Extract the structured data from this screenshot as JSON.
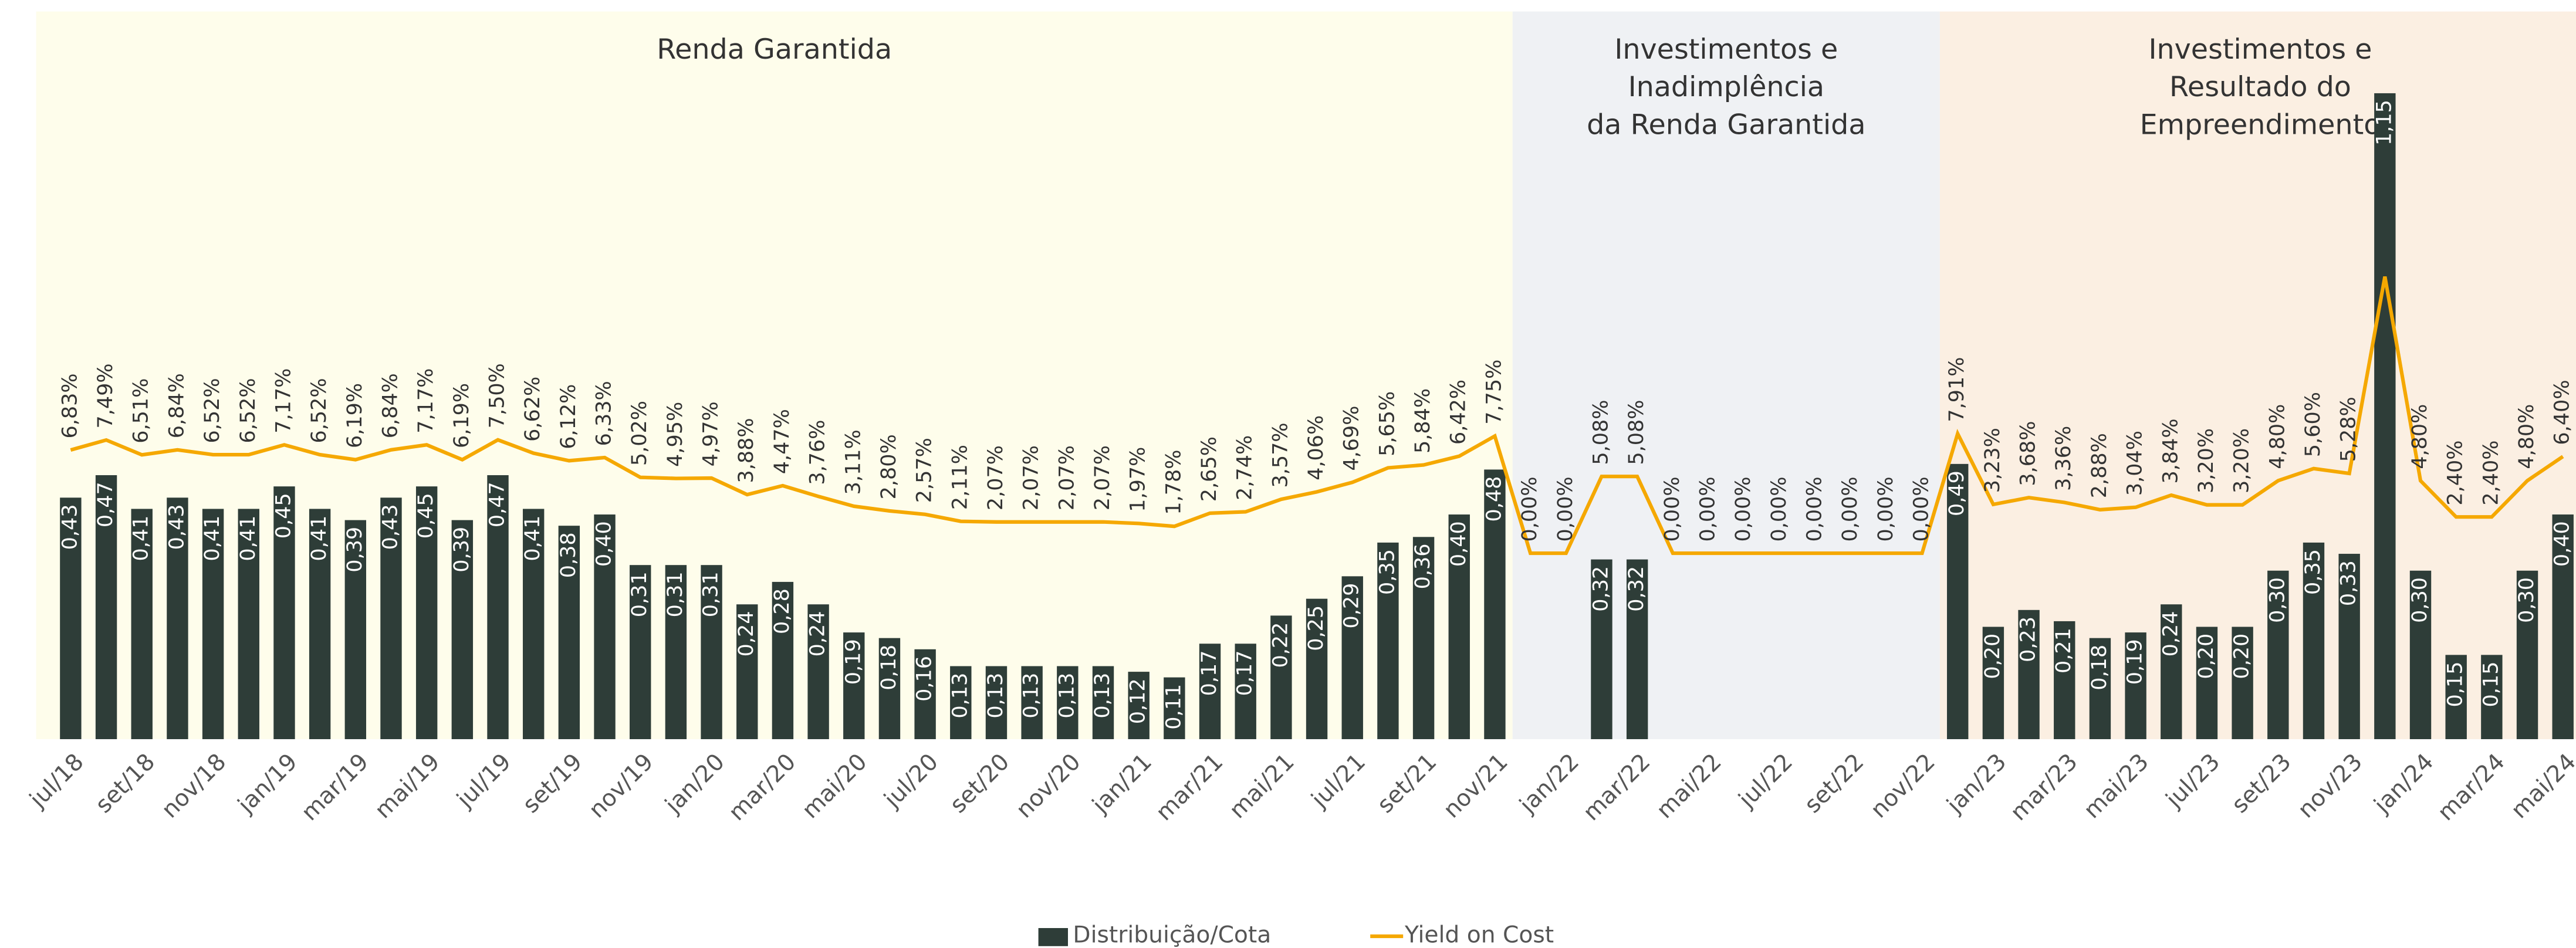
{
  "chart_data": {
    "type": "bar-line",
    "categories": [
      "jul/18",
      null,
      "set/18",
      null,
      "nov/18",
      null,
      "jan/19",
      null,
      "mar/19",
      null,
      "mai/19",
      null,
      "jul/19",
      null,
      "set/19",
      null,
      "nov/19",
      null,
      "jan/20",
      null,
      "mar/20",
      null,
      "mai/20",
      null,
      "jul/20",
      null,
      "set/20",
      null,
      "nov/20",
      null,
      "jan/21",
      null,
      "mar/21",
      null,
      "mai/21",
      null,
      "jul/21",
      null,
      "set/21",
      null,
      "nov/21",
      null,
      "jan/22",
      null,
      "mar/22",
      null,
      "mai/22",
      null,
      "jul/22",
      null,
      "set/22",
      null,
      "nov/22",
      null,
      "jan/23",
      null,
      "mar/23",
      null,
      "mai/23",
      null,
      "jul/23",
      null,
      "set/23",
      null,
      "nov/23",
      null,
      "jan/24",
      null,
      "mar/24",
      null,
      "mai/24"
    ],
    "series": [
      {
        "name": "Distribuição/Cota",
        "type": "bar",
        "color": "#2e3d38",
        "values": [
          0.43,
          0.47,
          0.41,
          0.43,
          0.41,
          0.41,
          0.45,
          0.41,
          0.39,
          0.43,
          0.45,
          0.39,
          0.47,
          0.41,
          0.38,
          0.4,
          0.31,
          0.31,
          0.31,
          0.24,
          0.28,
          0.24,
          0.19,
          0.18,
          0.16,
          0.13,
          0.13,
          0.13,
          0.13,
          0.13,
          0.12,
          0.11,
          0.17,
          0.17,
          0.22,
          0.25,
          0.29,
          0.35,
          0.36,
          0.4,
          0.48,
          null,
          null,
          0.32,
          0.32,
          null,
          null,
          null,
          null,
          null,
          null,
          null,
          null,
          0.49,
          0.2,
          0.23,
          0.21,
          0.18,
          0.19,
          0.24,
          0.2,
          0.2,
          0.3,
          0.35,
          0.33,
          1.15,
          0.3,
          0.15,
          0.15,
          0.3,
          0.4
        ],
        "value_labels": [
          "0,43",
          "0,47",
          "0,41",
          "0,43",
          "0,41",
          "0,41",
          "0,45",
          "0,41",
          "0,39",
          "0,43",
          "0,45",
          "0,39",
          "0,47",
          "0,41",
          "0,38",
          "0,40",
          "0,31",
          "0,31",
          "0,31",
          "0,24",
          "0,28",
          "0,24",
          "0,19",
          "0,18",
          "0,16",
          "0,13",
          "0,13",
          "0,13",
          "0,13",
          "0,13",
          "0,12",
          "0,11",
          "0,17",
          "0,17",
          "0,22",
          "0,25",
          "0,29",
          "0,35",
          "0,36",
          "0,40",
          "0,48",
          null,
          null,
          "0,32",
          "0,32",
          null,
          null,
          null,
          null,
          null,
          null,
          null,
          null,
          "0,49",
          "0,20",
          "0,23",
          "0,21",
          "0,18",
          "0,19",
          "0,24",
          "0,20",
          "0,20",
          "0,30",
          "0,35",
          "0,33",
          "1,15",
          "0,30",
          "0,15",
          "0,15",
          "0,30",
          "0,40"
        ]
      },
      {
        "name": "Yield on Cost",
        "type": "line",
        "axis": "y2",
        "color": "#f5a800",
        "values": [
          6.83,
          7.49,
          6.51,
          6.84,
          6.52,
          6.52,
          7.17,
          6.52,
          6.19,
          6.84,
          7.17,
          6.19,
          7.5,
          6.62,
          6.12,
          6.33,
          5.02,
          4.95,
          4.97,
          3.88,
          4.47,
          3.76,
          3.11,
          2.8,
          2.57,
          2.11,
          2.07,
          2.07,
          2.07,
          2.07,
          1.97,
          1.78,
          2.65,
          2.74,
          3.57,
          4.06,
          4.69,
          5.65,
          5.84,
          6.42,
          7.75,
          0,
          0,
          5.08,
          5.08,
          0,
          0,
          0,
          0,
          0,
          0,
          0,
          0,
          7.91,
          3.23,
          3.68,
          3.36,
          2.88,
          3.04,
          3.84,
          3.2,
          3.2,
          4.8,
          5.6,
          5.28,
          18.3,
          4.8,
          2.4,
          2.4,
          4.8,
          6.4
        ],
        "value_labels": [
          "6,83%",
          "7,49%",
          "6,51%",
          "6,84%",
          "6,52%",
          "6,52%",
          "7,17%",
          "6,52%",
          "6,19%",
          "6,84%",
          "7,17%",
          "6,19%",
          "7,50%",
          "6,62%",
          "6,12%",
          "6,33%",
          "5,02%",
          "4,95%",
          "4,97%",
          "3,88%",
          "4,47%",
          "3,76%",
          "3,11%",
          "2,80%",
          "2,57%",
          "2,11%",
          "2,07%",
          "2,07%",
          "2,07%",
          "2,07%",
          "1,97%",
          "1,78%",
          "2,65%",
          "2,74%",
          "3,57%",
          "4,06%",
          "4,69%",
          "5,65%",
          "5,84%",
          "6,42%",
          "7,75%",
          "0,00%",
          "0,00%",
          "5,08%",
          "5,08%",
          "0,00%",
          "0,00%",
          "0,00%",
          "0,00%",
          "0,00%",
          "0,00%",
          "0,00%",
          "0,00%",
          "7,91%",
          "3,23%",
          "3,68%",
          "3,36%",
          "2,88%",
          "3,04%",
          "3,84%",
          "3,20%",
          "3,20%",
          "4,80%",
          "5,60%",
          "5,28%",
          null,
          "4,80%",
          "2,40%",
          "2,40%",
          "4,80%",
          "6,40%"
        ]
      }
    ],
    "ylim": [
      0,
      1.316
    ],
    "y2lim": [
      -12.3,
      36.6
    ],
    "regions": [
      {
        "lines": [
          "Renda Garantida"
        ],
        "from": 0,
        "to": 40,
        "color": "#fefdeb"
      },
      {
        "lines": [
          "Investimentos e",
          "Inadimplência",
          "da Renda Garantida"
        ],
        "from": 41,
        "to": 52,
        "color": "#eff1f4"
      },
      {
        "lines": [
          "Investimentos e",
          "Resultado do",
          "Empreendimento"
        ],
        "from": 53,
        "to": 70,
        "color": "#fbefe2"
      }
    ],
    "legend": "bottom"
  }
}
